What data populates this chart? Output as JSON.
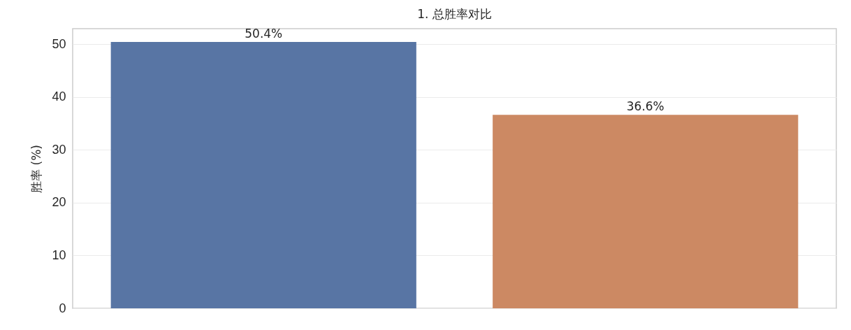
{
  "chart_data": {
    "type": "bar",
    "title": "1. 总胜率对比",
    "ylabel": "胜率 (%)",
    "categories": [
      null,
      null
    ],
    "values": [
      50.4,
      36.6
    ],
    "colors": [
      "#5875a4",
      "#cc8963"
    ],
    "value_labels": [
      "50.4%",
      "36.6%"
    ],
    "ylim": [
      0,
      52.92
    ],
    "yticks": [
      0,
      10,
      20,
      30,
      40,
      50
    ],
    "grid": "y"
  }
}
